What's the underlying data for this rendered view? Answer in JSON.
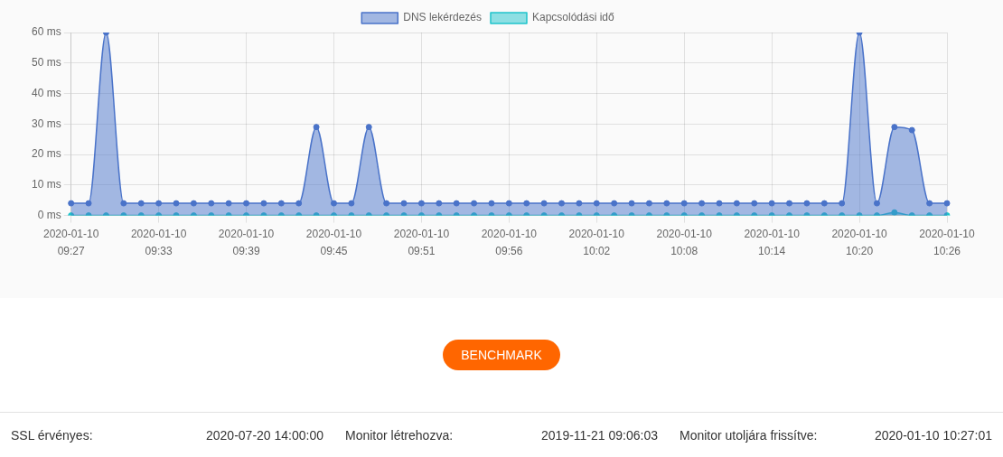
{
  "chart_data": {
    "type": "area",
    "categories": [
      "2020-01-10 09:27",
      null,
      null,
      null,
      null,
      "2020-01-10 09:33",
      null,
      null,
      null,
      null,
      "2020-01-10 09:39",
      null,
      null,
      null,
      null,
      "2020-01-10 09:45",
      null,
      null,
      null,
      null,
      "2020-01-10 09:51",
      null,
      null,
      null,
      null,
      "2020-01-10 09:56",
      null,
      null,
      null,
      null,
      "2020-01-10 10:02",
      null,
      null,
      null,
      null,
      "2020-01-10 10:08",
      null,
      null,
      null,
      null,
      "2020-01-10 10:14",
      null,
      null,
      null,
      null,
      "2020-01-10 10:20",
      null,
      null,
      null,
      null,
      "2020-01-10 10:26"
    ],
    "series": [
      {
        "name": "DNS lekérdezés",
        "color": "#4a73c9",
        "values": [
          4,
          4,
          60,
          4,
          4,
          4,
          4,
          4,
          4,
          4,
          4,
          4,
          4,
          4,
          29,
          4,
          4,
          29,
          4,
          4,
          4,
          4,
          4,
          4,
          4,
          4,
          4,
          4,
          4,
          4,
          4,
          4,
          4,
          4,
          4,
          4,
          4,
          4,
          4,
          4,
          4,
          4,
          4,
          4,
          4,
          60,
          4,
          29,
          28,
          4,
          4
        ]
      },
      {
        "name": "Kapcsolódási idő",
        "color": "#1fc4cb",
        "values": [
          0,
          0,
          0,
          0,
          0,
          0,
          0,
          0,
          0,
          0,
          0,
          0,
          0,
          0,
          0,
          0,
          0,
          0,
          0,
          0,
          0,
          0,
          0,
          0,
          0,
          0,
          0,
          0,
          0,
          0,
          0,
          0,
          0,
          0,
          0,
          0,
          0,
          0,
          0,
          0,
          0,
          0,
          0,
          0,
          0,
          0,
          0,
          1,
          0,
          0,
          0
        ]
      }
    ],
    "ylim": [
      0,
      60
    ],
    "yticks": [
      {
        "value": 0,
        "label": "0 ms"
      },
      {
        "value": 10,
        "label": "10 ms"
      },
      {
        "value": 20,
        "label": "20 ms"
      },
      {
        "value": 30,
        "label": "30 ms"
      },
      {
        "value": 40,
        "label": "40 ms"
      },
      {
        "value": 50,
        "label": "50 ms"
      },
      {
        "value": 60,
        "label": "60 ms"
      }
    ],
    "grid": true,
    "legend": "top",
    "marker": "circle",
    "annotations": [
      "BENCHMARK",
      "SSL érvényes:",
      "2020-07-20 14:00:00",
      "Monitor létrehozva:",
      "2019-11-21 09:06:03",
      "Monitor utoljára frissítve:",
      "2020-01-10 10:27:01"
    ]
  }
}
